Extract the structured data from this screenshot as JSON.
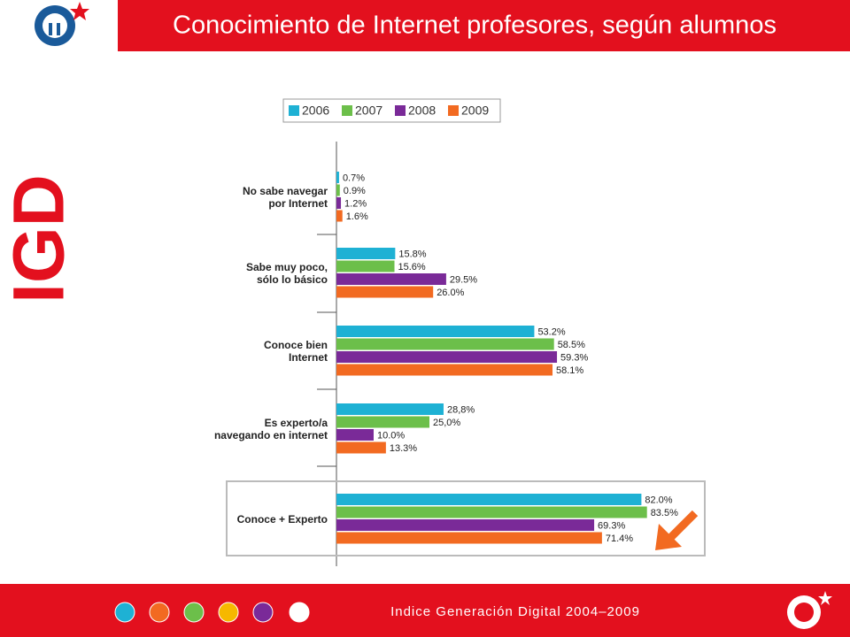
{
  "header": {
    "title": "Conocimiento de Internet profesores, según alumnos"
  },
  "side_text": "IGD",
  "footer": {
    "text": "Indice Generación Digital 2004–2009"
  },
  "chart_data": {
    "type": "bar",
    "orientation": "horizontal",
    "categories": [
      "No sabe navegar\npor Internet",
      "Sabe muy poco,\nsólo lo básico",
      "Conoce bien\nInternet",
      "Es experto/a\nnavegando en internet",
      "Conoce + Experto"
    ],
    "series": [
      {
        "name": "2006",
        "color": "#1eb1d4",
        "values": [
          0.7,
          15.8,
          53.2,
          28.8,
          82.0
        ],
        "value_labels": [
          "0.7%",
          "15.8%",
          "53.2%",
          "28,8%",
          "82.0%"
        ]
      },
      {
        "name": "2007",
        "color": "#6cbf4a",
        "values": [
          0.9,
          15.6,
          58.5,
          25.0,
          83.5
        ],
        "value_labels": [
          "0.9%",
          "15.6%",
          "58.5%",
          "25,0%",
          "83.5%"
        ]
      },
      {
        "name": "2008",
        "color": "#7a2a98",
        "values": [
          1.2,
          29.5,
          59.3,
          10.0,
          69.3
        ],
        "value_labels": [
          "1.2%",
          "29.5%",
          "59.3%",
          "10.0%",
          "69.3%"
        ]
      },
      {
        "name": "2009",
        "color": "#f26a21",
        "values": [
          1.6,
          26.0,
          58.1,
          13.3,
          71.4
        ],
        "value_labels": [
          "1.6%",
          "26.0%",
          "58.1%",
          "13.3%",
          "71.4%"
        ]
      }
    ]
  }
}
